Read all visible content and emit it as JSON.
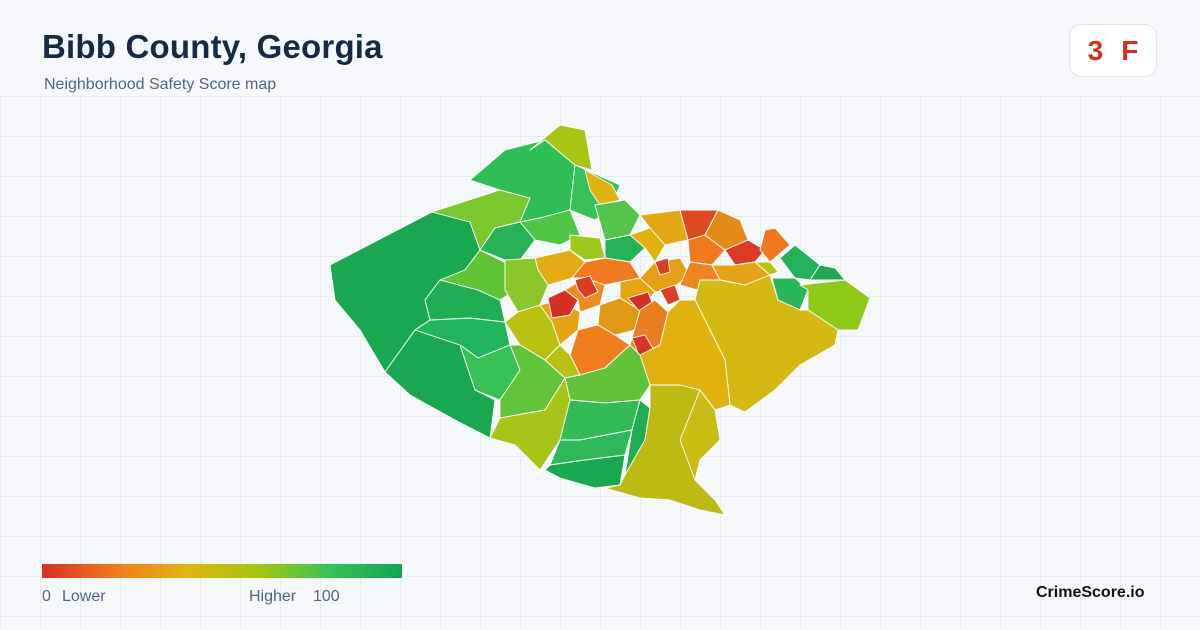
{
  "header": {
    "title": "Bibb County, Georgia",
    "subtitle": "Neighborhood Safety Score map"
  },
  "score": {
    "value": "3",
    "grade": "F",
    "color": "#d52f23"
  },
  "legend": {
    "min": "0",
    "low_label": "Lower",
    "high_label": "Higher",
    "max": "100",
    "colors": [
      "#d72c26",
      "#ef7a20",
      "#e2b40f",
      "#a6c50e",
      "#36c258",
      "#13a452"
    ]
  },
  "brand": "CrimeScore.io"
}
